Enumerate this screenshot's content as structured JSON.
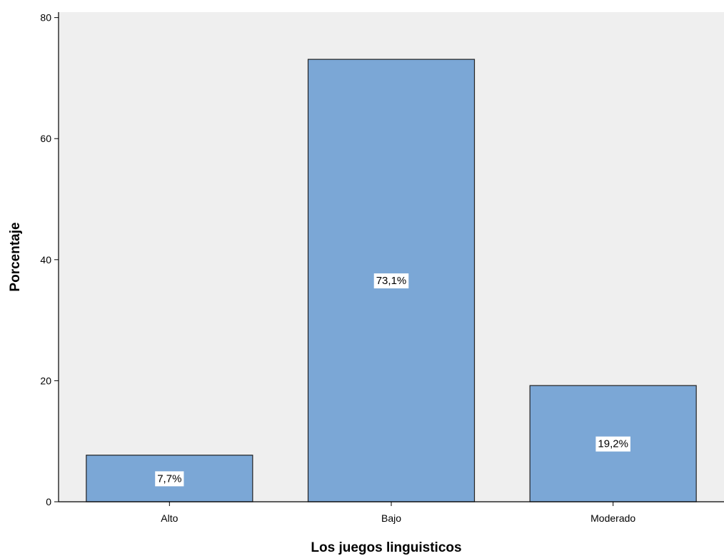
{
  "chart_data": {
    "type": "bar",
    "title": "",
    "xlabel": "Los juegos linguisticos",
    "ylabel": "Porcentaje",
    "categories": [
      "Alto",
      "Bajo",
      "Moderado"
    ],
    "values": [
      7.7,
      73.1,
      19.2
    ],
    "data_labels": [
      "7,7%",
      "73,1%",
      "19,2%"
    ],
    "ylim": [
      0,
      80.9
    ],
    "yticks": [
      0,
      20,
      40,
      60,
      80
    ],
    "grid": false,
    "legend": "none",
    "colors": {
      "bar_fill": "#7ba7d6",
      "bar_stroke": "#222222",
      "plot_background": "#efefef",
      "axis": "#000000",
      "label_background": "#ffffff"
    }
  }
}
